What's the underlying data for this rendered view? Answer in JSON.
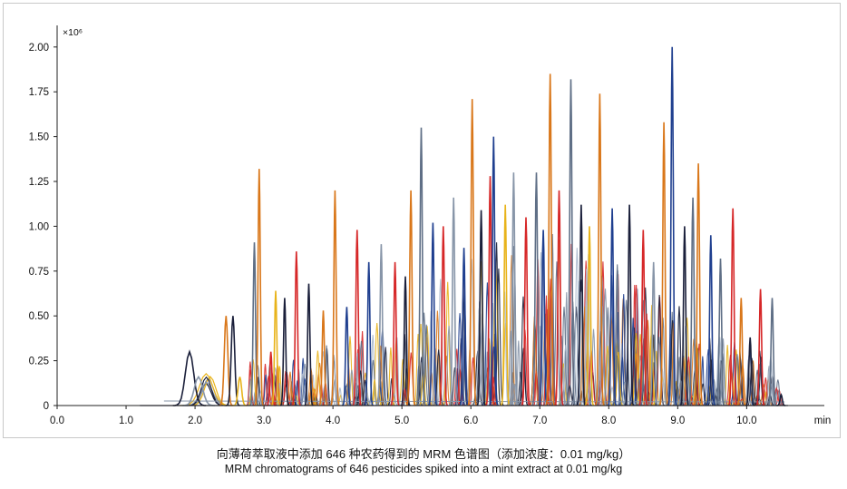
{
  "chart_data": {
    "type": "line",
    "title": "",
    "xlabel": "min",
    "ylabel": "",
    "y_multiplier_label": "×10⁶",
    "xlim": [
      0,
      11.1
    ],
    "ylim": [
      0,
      2.08
    ],
    "x_ticks": [
      0,
      1,
      2,
      3,
      4,
      5,
      6,
      7,
      8,
      9,
      10
    ],
    "x_tick_labels": [
      "0.0",
      "1.0",
      "2.0",
      "3.0",
      "4.0",
      "5.0",
      "6.0",
      "7.0",
      "8.0",
      "9.0",
      "10.0"
    ],
    "y_ticks": [
      0,
      0.25,
      0.5,
      0.75,
      1.0,
      1.25,
      1.5,
      1.75,
      2.0
    ],
    "y_tick_labels": [
      "0",
      "0.25",
      "0.50",
      "0.75",
      "1.00",
      "1.25",
      "1.50",
      "1.75",
      "2.00"
    ],
    "grid": false,
    "legend": "none",
    "series_count_note": "646 pesticides",
    "palette": [
      "#d9771a",
      "#d62728",
      "#1f3f8f",
      "#8795a8",
      "#1a1f3a",
      "#e8b31a",
      "#5f6f86",
      "#a9b8cc"
    ],
    "peaks": [
      {
        "rt": 1.92,
        "height": 0.3,
        "color": "#1a1f3a"
      },
      {
        "rt": 2.05,
        "height": 0.16,
        "color": "#8795a8"
      },
      {
        "rt": 2.45,
        "height": 0.5,
        "color": "#d9771a"
      },
      {
        "rt": 2.55,
        "height": 0.5,
        "color": "#1a1f3a"
      },
      {
        "rt": 2.65,
        "height": 0.16,
        "color": "#e8b31a"
      },
      {
        "rt": 2.86,
        "height": 0.91,
        "color": "#5f6f86"
      },
      {
        "rt": 2.93,
        "height": 1.32,
        "color": "#d9771a"
      },
      {
        "rt": 3.1,
        "height": 0.3,
        "color": "#d62728"
      },
      {
        "rt": 3.17,
        "height": 0.64,
        "color": "#e8b31a"
      },
      {
        "rt": 3.3,
        "height": 0.6,
        "color": "#1a1f3a"
      },
      {
        "rt": 3.47,
        "height": 0.86,
        "color": "#d62728"
      },
      {
        "rt": 3.65,
        "height": 0.68,
        "color": "#1a1f3a"
      },
      {
        "rt": 3.86,
        "height": 0.53,
        "color": "#d9771a"
      },
      {
        "rt": 4.03,
        "height": 1.2,
        "color": "#d9771a"
      },
      {
        "rt": 4.2,
        "height": 0.55,
        "color": "#1f3f8f"
      },
      {
        "rt": 4.35,
        "height": 0.98,
        "color": "#d62728"
      },
      {
        "rt": 4.52,
        "height": 0.8,
        "color": "#1f3f8f"
      },
      {
        "rt": 4.7,
        "height": 0.9,
        "color": "#8795a8"
      },
      {
        "rt": 4.9,
        "height": 0.8,
        "color": "#d62728"
      },
      {
        "rt": 5.05,
        "height": 0.72,
        "color": "#1a1f3a"
      },
      {
        "rt": 5.13,
        "height": 1.2,
        "color": "#d9771a"
      },
      {
        "rt": 5.28,
        "height": 1.55,
        "color": "#5f6f86"
      },
      {
        "rt": 5.45,
        "height": 1.02,
        "color": "#1f3f8f"
      },
      {
        "rt": 5.6,
        "height": 1.0,
        "color": "#d62728"
      },
      {
        "rt": 5.75,
        "height": 1.16,
        "color": "#8795a8"
      },
      {
        "rt": 5.9,
        "height": 0.88,
        "color": "#1f3f8f"
      },
      {
        "rt": 6.02,
        "height": 1.71,
        "color": "#d9771a"
      },
      {
        "rt": 6.15,
        "height": 1.09,
        "color": "#1a1f3a"
      },
      {
        "rt": 6.28,
        "height": 1.28,
        "color": "#d62728"
      },
      {
        "rt": 6.33,
        "height": 1.5,
        "color": "#1f3f8f"
      },
      {
        "rt": 6.5,
        "height": 1.12,
        "color": "#e8b31a"
      },
      {
        "rt": 6.62,
        "height": 1.3,
        "color": "#8795a8"
      },
      {
        "rt": 6.8,
        "height": 1.05,
        "color": "#d62728"
      },
      {
        "rt": 6.95,
        "height": 1.3,
        "color": "#5f6f86"
      },
      {
        "rt": 7.05,
        "height": 0.98,
        "color": "#1f3f8f"
      },
      {
        "rt": 7.15,
        "height": 1.85,
        "color": "#d9771a"
      },
      {
        "rt": 7.28,
        "height": 1.2,
        "color": "#d62728"
      },
      {
        "rt": 7.45,
        "height": 1.82,
        "color": "#5f6f86"
      },
      {
        "rt": 7.6,
        "height": 1.12,
        "color": "#1a1f3a"
      },
      {
        "rt": 7.72,
        "height": 1.0,
        "color": "#e8b31a"
      },
      {
        "rt": 7.87,
        "height": 1.74,
        "color": "#d9771a"
      },
      {
        "rt": 8.05,
        "height": 1.1,
        "color": "#1f3f8f"
      },
      {
        "rt": 8.3,
        "height": 1.12,
        "color": "#1a1f3a"
      },
      {
        "rt": 8.5,
        "height": 0.98,
        "color": "#d62728"
      },
      {
        "rt": 8.65,
        "height": 0.8,
        "color": "#8795a8"
      },
      {
        "rt": 8.8,
        "height": 1.58,
        "color": "#d9771a"
      },
      {
        "rt": 8.92,
        "height": 2.0,
        "color": "#1f3f8f"
      },
      {
        "rt": 9.1,
        "height": 1.0,
        "color": "#1a1f3a"
      },
      {
        "rt": 9.22,
        "height": 1.16,
        "color": "#5f6f86"
      },
      {
        "rt": 9.3,
        "height": 1.35,
        "color": "#d9771a"
      },
      {
        "rt": 9.48,
        "height": 0.95,
        "color": "#1f3f8f"
      },
      {
        "rt": 9.62,
        "height": 0.82,
        "color": "#5f6f86"
      },
      {
        "rt": 9.8,
        "height": 1.1,
        "color": "#d62728"
      },
      {
        "rt": 9.92,
        "height": 0.6,
        "color": "#d9771a"
      },
      {
        "rt": 10.05,
        "height": 0.38,
        "color": "#1a1f3a"
      },
      {
        "rt": 10.2,
        "height": 0.65,
        "color": "#d62728"
      },
      {
        "rt": 10.37,
        "height": 0.6,
        "color": "#5f6f86"
      },
      {
        "rt": 10.5,
        "height": 0.06,
        "color": "#1a1f3a"
      }
    ]
  },
  "caption": {
    "zh": "向薄荷萃取液中添加 646 种农药得到的 MRM 色谱图（添加浓度：0.01 mg/kg）",
    "en": "MRM chromatograms of 646 pesticides spiked into a mint extract at 0.01 mg/kg"
  }
}
